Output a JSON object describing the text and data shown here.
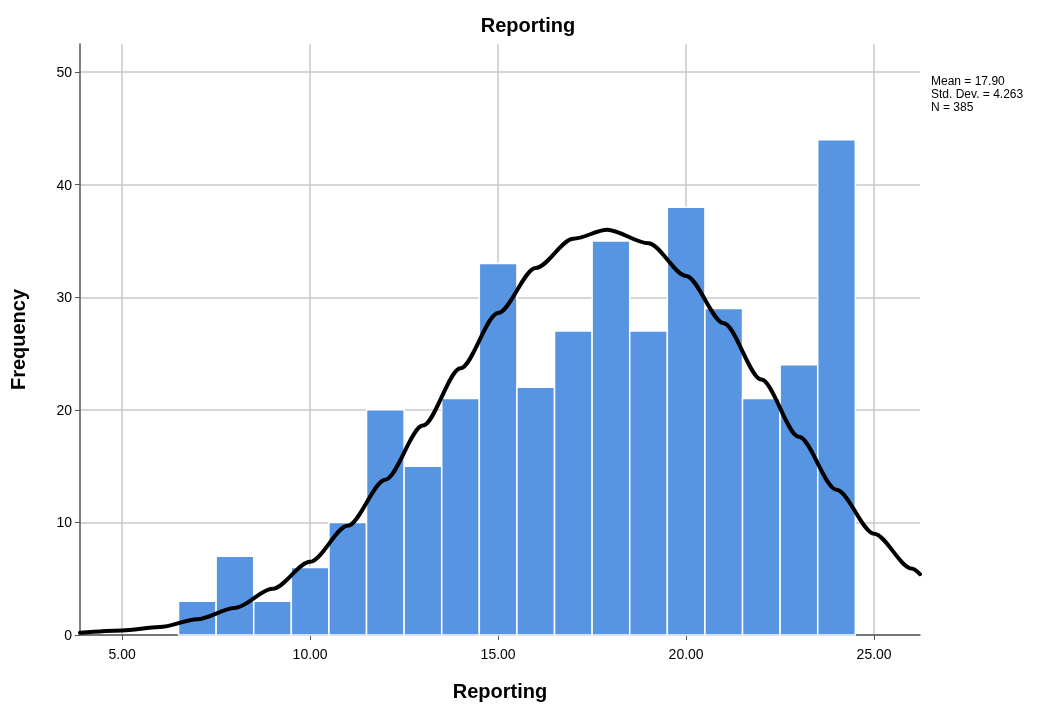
{
  "chart_data": {
    "type": "histogram",
    "title": "Reporting",
    "xlabel": "Reporting",
    "ylabel": "Frequency",
    "bins": [
      6.5,
      7.5,
      8.5,
      9.5,
      10.5,
      11.5,
      12.5,
      13.5,
      14.5,
      15.5,
      16.5,
      17.5,
      18.5,
      19.5,
      20.5,
      21.5,
      22.5,
      23.5,
      24.5
    ],
    "values": [
      3,
      7,
      3,
      6,
      10,
      20,
      15,
      21,
      33,
      22,
      27,
      35,
      27,
      38,
      29,
      21,
      24,
      44
    ],
    "color": "#5795e3",
    "series": [
      {
        "type": "line",
        "color": "#000000",
        "x": [
          3.88,
          5,
          6,
          7,
          8,
          9,
          10,
          11,
          12,
          13,
          14,
          15,
          16,
          17,
          17.9,
          19,
          20,
          21,
          22,
          23,
          24,
          25,
          26,
          26.22
        ],
        "values": [
          0.2,
          0.4,
          0.7,
          1.4,
          2.4,
          4.1,
          6.5,
          9.7,
          13.8,
          18.6,
          23.7,
          28.6,
          32.6,
          35.2,
          36,
          34.8,
          31.9,
          27.7,
          22.7,
          17.6,
          12.9,
          9,
          5.9,
          5.4
        ]
      }
    ],
    "annotations": [
      "Mean = 17.90\nStd. Dev. = 4.263\nN = 385"
    ],
    "xlim": [
      3.88,
      26.22
    ],
    "xticks": [
      {
        "value": 5,
        "label": "5.00"
      },
      {
        "value": 10,
        "label": "10.00"
      },
      {
        "value": 15,
        "label": "15.00"
      },
      {
        "value": 20,
        "label": "20.00"
      },
      {
        "value": 25,
        "label": "25.00"
      }
    ],
    "ylim": [
      0,
      52.5
    ],
    "yticks": [
      0,
      10,
      20,
      30,
      40,
      50
    ],
    "grid": true,
    "legend": false,
    "marker": "none",
    "line_style": "solid"
  }
}
